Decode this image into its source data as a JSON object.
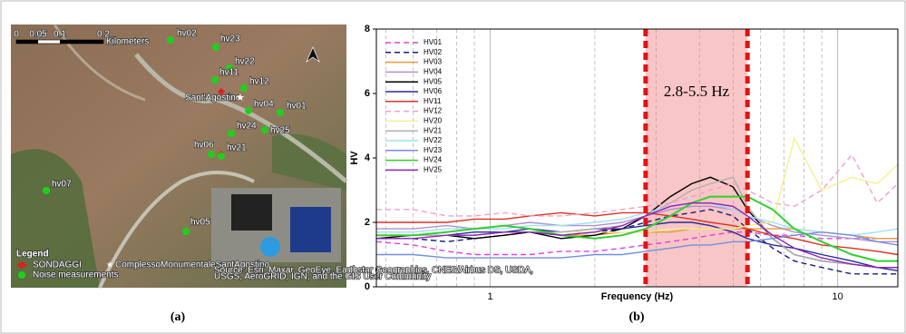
{
  "captions": [
    "(a)",
    "(b)"
  ],
  "map": {
    "points": [
      {
        "label": "hv02"
      },
      {
        "label": "hv23"
      },
      {
        "label": "hv22"
      },
      {
        "label": "hv11"
      },
      {
        "label": "hv12"
      },
      {
        "label": "hv04"
      },
      {
        "label": "hv01"
      },
      {
        "label": "hv24"
      },
      {
        "label": "hv25"
      },
      {
        "label": "hv06"
      },
      {
        "label": "hv21"
      },
      {
        "label": "hv07"
      },
      {
        "label": "hv05"
      }
    ],
    "place_label": "Sant'Agostino",
    "scale": [
      "0",
      "0.05",
      "0.1",
      "0.2"
    ],
    "scale_unit": "Kilometers",
    "legend": {
      "title": "Legend",
      "items": [
        "SONDAGGI",
        "ComplessoMonumentaleSantAgostino",
        "Noise measurements"
      ]
    },
    "attribution": [
      "Source: Esri, Maxar, GeoEye, Earthstar Geographics, CNES/Airbus DS, USDA,",
      "USGS, AeroGRID, IGN, and the GIS User Community"
    ]
  },
  "chart_data": {
    "type": "line",
    "xlabel": "Frequency (Hz)",
    "ylabel": "HV",
    "xscale": "log",
    "xlim": [
      0.47,
      14.9
    ],
    "ylim": [
      0,
      8
    ],
    "xticks": [
      1,
      10
    ],
    "x_minor_ticks": [
      0.5,
      0.6,
      0.7,
      0.8,
      0.9,
      2,
      3,
      4,
      5,
      6,
      7,
      8,
      9
    ],
    "yticks": [
      0,
      2,
      4,
      6,
      8
    ],
    "band": [
      2.8,
      5.5
    ],
    "band_color": "#f08080",
    "annotation": "2.8-5.5 Hz",
    "legend_position": "upper left",
    "x": [
      0.47,
      0.6,
      0.75,
      0.9,
      1.1,
      1.3,
      1.6,
      2,
      2.4,
      2.8,
      3.3,
      3.8,
      4.3,
      5,
      5.5,
      6.5,
      7.5,
      9,
      11,
      13,
      14.9
    ],
    "series": [
      {
        "name": "HV01",
        "color": "#e040e0",
        "dash": "dashed",
        "values": [
          1.4,
          1.3,
          1.1,
          1.0,
          1.0,
          1.0,
          1.1,
          1.1,
          1.2,
          1.3,
          1.4,
          1.5,
          1.6,
          1.7,
          1.7,
          1.6,
          1.6,
          1.5,
          1.5,
          1.5,
          1.5
        ]
      },
      {
        "name": "HV02",
        "color": "#1a1a80",
        "dash": "dashed",
        "values": [
          1.5,
          1.5,
          1.4,
          1.5,
          1.6,
          1.7,
          1.6,
          1.7,
          1.8,
          2.0,
          2.2,
          2.3,
          2.4,
          2.2,
          1.8,
          1.2,
          0.8,
          0.6,
          0.4,
          0.4,
          0.4
        ]
      },
      {
        "name": "HV03",
        "color": "#e69a40",
        "dash": "solid",
        "values": [
          1.6,
          1.6,
          1.6,
          1.6,
          1.7,
          1.7,
          1.6,
          1.6,
          1.7,
          1.7,
          1.7,
          1.8,
          1.8,
          1.8,
          1.8,
          1.8,
          1.8,
          1.7,
          1.6,
          1.5,
          1.5
        ]
      },
      {
        "name": "HV04",
        "color": "#b090d0",
        "dash": "solid",
        "values": [
          1.8,
          1.8,
          1.9,
          1.8,
          1.9,
          2.0,
          1.9,
          1.9,
          2.0,
          2.2,
          2.4,
          2.5,
          2.5,
          2.4,
          2.2,
          1.9,
          1.7,
          1.6,
          1.5,
          1.4,
          1.4
        ]
      },
      {
        "name": "HV05",
        "color": "#000000",
        "dash": "solid",
        "values": [
          1.5,
          1.6,
          1.6,
          1.5,
          1.6,
          1.7,
          1.5,
          1.6,
          1.8,
          2.2,
          2.8,
          3.2,
          3.4,
          3.1,
          2.4,
          1.5,
          1.0,
          0.8,
          0.7,
          0.6,
          0.6
        ]
      },
      {
        "name": "HV06",
        "color": "#2a2a9a",
        "dash": "solid",
        "values": [
          1.6,
          1.6,
          1.6,
          1.7,
          1.7,
          1.8,
          1.7,
          1.8,
          1.8,
          1.9,
          2.0,
          2.0,
          1.9,
          1.7,
          1.5,
          1.3,
          1.2,
          1.0,
          0.8,
          0.6,
          0.5
        ]
      },
      {
        "name": "HV11",
        "color": "#e03020",
        "dash": "solid",
        "values": [
          2.0,
          2.0,
          2.0,
          2.1,
          2.1,
          2.2,
          2.3,
          2.2,
          2.3,
          2.3,
          2.2,
          2.1,
          2.0,
          1.9,
          1.8,
          1.6,
          1.5,
          1.3,
          1.2,
          1.1,
          1.0
        ]
      },
      {
        "name": "HV12",
        "color": "#f0a0d0",
        "dash": "dashed",
        "values": [
          2.4,
          2.4,
          2.2,
          2.2,
          2.3,
          2.2,
          2.2,
          2.3,
          2.4,
          2.5,
          2.6,
          2.8,
          3.0,
          3.2,
          3.0,
          2.6,
          2.5,
          3.0,
          4.1,
          2.6,
          3.2
        ]
      },
      {
        "name": "HV20",
        "color": "#f5f090",
        "dash": "solid",
        "values": [
          1.6,
          1.6,
          1.6,
          1.6,
          1.7,
          1.7,
          1.7,
          1.7,
          1.7,
          1.7,
          1.8,
          1.8,
          1.8,
          1.8,
          1.9,
          2.0,
          4.6,
          3.0,
          3.4,
          3.2,
          3.8
        ]
      },
      {
        "name": "HV21",
        "color": "#b0b0b0",
        "dash": "solid",
        "values": [
          1.6,
          1.6,
          1.6,
          1.6,
          1.7,
          1.7,
          1.7,
          1.8,
          1.9,
          2.2,
          2.6,
          3.0,
          3.2,
          3.4,
          2.5,
          1.5,
          1.0,
          0.8,
          0.7,
          0.6,
          0.6
        ]
      },
      {
        "name": "HV22",
        "color": "#a0e0f0",
        "dash": "solid",
        "values": [
          1.7,
          1.7,
          1.8,
          1.8,
          1.8,
          1.9,
          1.9,
          2.0,
          2.1,
          2.3,
          2.5,
          2.6,
          2.6,
          2.4,
          2.2,
          2.0,
          1.8,
          1.7,
          1.6,
          1.7,
          1.8
        ]
      },
      {
        "name": "HV23",
        "color": "#7090e0",
        "dash": "solid",
        "values": [
          1.0,
          1.0,
          0.9,
          0.9,
          0.9,
          0.9,
          0.9,
          1.0,
          1.0,
          1.1,
          1.2,
          1.3,
          1.3,
          1.4,
          1.4,
          1.5,
          1.6,
          1.7,
          1.6,
          1.4,
          1.3
        ]
      },
      {
        "name": "HV24",
        "color": "#30d030",
        "dash": "solid",
        "values": [
          1.6,
          1.6,
          1.7,
          1.8,
          1.9,
          1.8,
          1.6,
          1.5,
          1.6,
          1.8,
          2.2,
          2.6,
          2.8,
          2.8,
          2.8,
          2.4,
          1.8,
          1.4,
          1.0,
          0.8,
          0.8
        ]
      },
      {
        "name": "HV25",
        "color": "#9020c0",
        "dash": "solid",
        "values": [
          1.5,
          1.5,
          1.6,
          1.6,
          1.7,
          1.7,
          1.6,
          1.7,
          1.9,
          2.2,
          2.5,
          2.6,
          2.6,
          2.5,
          2.2,
          1.6,
          1.2,
          0.9,
          0.7,
          0.6,
          0.6
        ]
      }
    ]
  }
}
